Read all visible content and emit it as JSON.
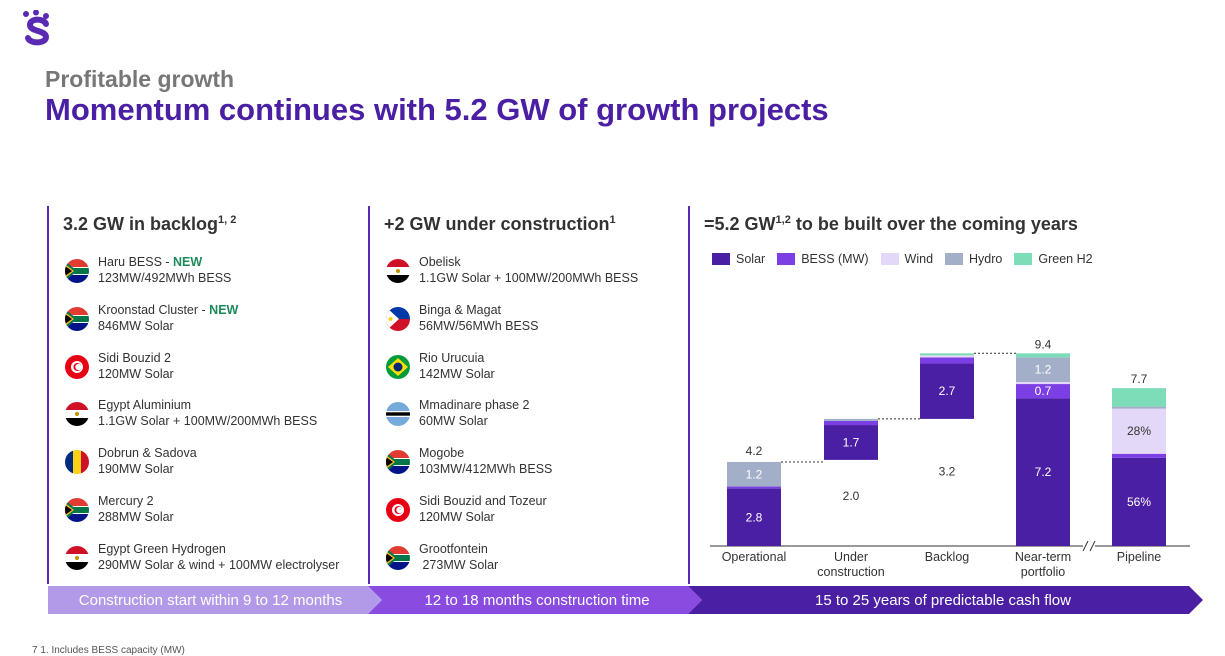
{
  "header": {
    "kicker": "Profitable growth",
    "title": "Momentum continues with 5.2 GW of growth projects"
  },
  "columns": [
    {
      "heading": "3.2 GW in backlog",
      "heading_sup": "1, 2",
      "items": [
        {
          "name": "Haru BESS",
          "tag": "NEW",
          "detail": "123MW/492MWh BESS",
          "flag": "south-africa"
        },
        {
          "name": "Kroonstad Cluster",
          "tag": "NEW",
          "detail": "846MW Solar",
          "flag": "south-africa"
        },
        {
          "name": "Sidi Bouzid 2",
          "tag": "",
          "detail": "120MW Solar",
          "flag": "tunisia"
        },
        {
          "name": "Egypt Aluminium",
          "tag": "",
          "detail": "1.1GW Solar + 100MW/200MWh BESS",
          "flag": "egypt"
        },
        {
          "name": "Dobrun & Sadova",
          "tag": "",
          "detail": "190MW Solar",
          "flag": "romania"
        },
        {
          "name": "Mercury 2",
          "tag": "",
          "detail": "288MW Solar",
          "flag": "south-africa"
        },
        {
          "name": "Egypt Green Hydrogen",
          "tag": "",
          "detail": "290MW Solar & wind + 100MW electrolyser",
          "flag": "egypt"
        }
      ]
    },
    {
      "heading": "+2 GW under construction",
      "heading_sup": "1",
      "items": [
        {
          "name": "Obelisk",
          "tag": "",
          "detail": "1.1GW Solar + 100MW/200MWh BESS",
          "flag": "egypt"
        },
        {
          "name": "Binga & Magat",
          "tag": "",
          "detail": "56MW/56MWh BESS",
          "flag": "philippines"
        },
        {
          "name": "Rio Urucuia",
          "tag": "",
          "detail": "142MW Solar",
          "flag": "brazil"
        },
        {
          "name": "Mmadinare phase 2",
          "tag": "",
          "detail": "60MW Solar",
          "flag": "botswana"
        },
        {
          "name": "Mogobe",
          "tag": "",
          "detail": "103MW/412MWh BESS",
          "flag": "south-africa"
        },
        {
          "name": "Sidi Bouzid and Tozeur",
          "tag": "",
          "detail": "120MW Solar",
          "flag": "tunisia"
        },
        {
          "name": "Grootfontein",
          "tag": "",
          "detail": " 273MW Solar",
          "flag": "south-africa"
        }
      ]
    },
    {
      "heading": "=5.2 GW",
      "heading_sup": "1,2",
      "heading_tail": " to be built over the coming years"
    }
  ],
  "legend": [
    {
      "label": "Solar",
      "color": "#4B1FA3"
    },
    {
      "label": "BESS (MW)",
      "color": "#7B3FE4"
    },
    {
      "label": "Wind",
      "color": "#E3D8F7"
    },
    {
      "label": "Hydro",
      "color": "#A3AEC9"
    },
    {
      "label": "Green H2",
      "color": "#7DDDB8"
    }
  ],
  "chart_data": {
    "type": "bar",
    "subtype": "waterfall",
    "categories": [
      "Operational",
      "Under construction",
      "Backlog",
      "Near-term portfolio",
      "Pipeline"
    ],
    "category_lines": [
      [
        "Operational"
      ],
      [
        "Under",
        "construction"
      ],
      [
        "Backlog"
      ],
      [
        "Near-term",
        "portfolio"
      ],
      [
        "Pipeline"
      ]
    ],
    "totals": [
      4.2,
      2.0,
      3.2,
      9.4,
      7.7
    ],
    "total_labels": [
      "4.2",
      "2.0",
      "3.2",
      "9.4",
      "7.7"
    ],
    "bars": [
      {
        "base": 0,
        "segments": [
          {
            "series": "Solar",
            "value": 2.8,
            "label": "2.8"
          },
          {
            "series": "BESS (MW)",
            "value": 0.1,
            "label": ""
          },
          {
            "series": "Hydro",
            "value": 1.2,
            "label": "1.2"
          }
        ]
      },
      {
        "base": 4.2,
        "segments": [
          {
            "series": "Solar",
            "value": 1.7,
            "label": "1.7"
          },
          {
            "series": "BESS (MW)",
            "value": 0.2,
            "label": ""
          },
          {
            "series": "Hydro",
            "value": 0.1,
            "label": ""
          }
        ]
      },
      {
        "base": 6.2,
        "segments": [
          {
            "series": "Solar",
            "value": 2.7,
            "label": "2.7"
          },
          {
            "series": "BESS (MW)",
            "value": 0.3,
            "label": ""
          },
          {
            "series": "Wind",
            "value": 0.1,
            "label": ""
          },
          {
            "series": "Green H2",
            "value": 0.1,
            "label": ""
          }
        ]
      },
      {
        "base": 0,
        "segments": [
          {
            "series": "Solar",
            "value": 7.2,
            "label": "7.2"
          },
          {
            "series": "BESS (MW)",
            "value": 0.7,
            "label": "0.7"
          },
          {
            "series": "Wind",
            "value": 0.1,
            "label": ""
          },
          {
            "series": "Hydro",
            "value": 1.2,
            "label": "1.2"
          },
          {
            "series": "Green H2",
            "value": 0.2,
            "label": ""
          }
        ]
      },
      {
        "base": 0,
        "segments": [
          {
            "series": "Solar",
            "value": 4.3,
            "label": "56%"
          },
          {
            "series": "BESS (MW)",
            "value": 0.2,
            "label": ""
          },
          {
            "series": "Wind",
            "value": 2.2,
            "label": "28%"
          },
          {
            "series": "Hydro",
            "value": 0.1,
            "label": ""
          },
          {
            "series": "Green H2",
            "value": 0.9,
            "label": ""
          }
        ]
      }
    ],
    "ylim": [
      0,
      9.6
    ],
    "axis_break_before_last": true,
    "xlabel": "",
    "ylabel": ""
  },
  "timeline": [
    {
      "label": "Construction start within 9 to 12 months",
      "color": "#B39AE8"
    },
    {
      "label": "12 to 18 months construction time",
      "color": "#8A4BE0"
    },
    {
      "label": "15 to 25 years of predictable cash flow",
      "color": "#4B1FA3"
    }
  ],
  "footnote": "7      1. Includes BESS capacity (MW)"
}
